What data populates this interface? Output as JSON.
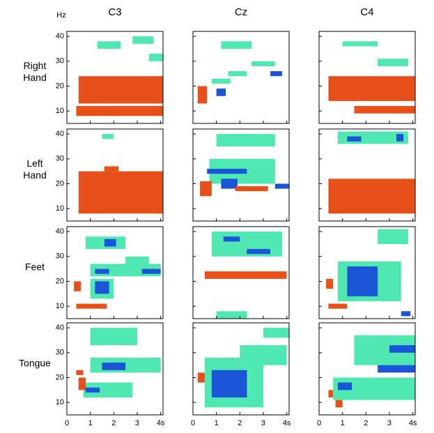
{
  "chart_data": {
    "type": "heatmap",
    "y_unit": "Hz",
    "columns": [
      "C3",
      "Cz",
      "C4"
    ],
    "rows": [
      "Right Hand",
      "Left Hand",
      "Feet",
      "Tongue"
    ],
    "xlim": [
      0,
      4.1
    ],
    "ylim": [
      5,
      42
    ],
    "xticks": [
      0,
      1,
      2,
      3,
      {
        "value": 4,
        "label": "4s"
      }
    ],
    "yticks": [
      10,
      20,
      30,
      40
    ],
    "colors": {
      "weak": "#4ee8b0",
      "erd": "#1a55d8",
      "ers": "#e8501a"
    },
    "panels": [
      [
        {
          "weak": [
            [
              1.3,
              2.3,
              35,
              38
            ],
            [
              2.8,
              3.7,
              37,
              40
            ],
            [
              3.5,
              4.1,
              30,
              33
            ]
          ],
          "erd": [],
          "ers": [
            [
              0.5,
              4.1,
              13,
              24
            ],
            [
              0.4,
              4.1,
              8,
              12
            ]
          ]
        },
        {
          "weak": [
            [
              1.2,
              2.5,
              35,
              38
            ],
            [
              2.5,
              3.5,
              28,
              30
            ],
            [
              1.5,
              2.3,
              24,
              26
            ],
            [
              0.8,
              1.6,
              21,
              23
            ]
          ],
          "erd": [
            [
              3.3,
              3.8,
              24,
              26
            ],
            [
              1.0,
              1.4,
              16,
              19
            ]
          ],
          "ers": [
            [
              0.2,
              0.6,
              13,
              20
            ]
          ]
        },
        {
          "weak": [
            [
              1.0,
              2.5,
              36,
              38
            ],
            [
              2.5,
              3.8,
              28,
              31
            ]
          ],
          "erd": [],
          "ers": [
            [
              0.4,
              4.1,
              14,
              24
            ],
            [
              1.5,
              4.1,
              9,
              12
            ]
          ]
        }
      ],
      [
        {
          "weak": [
            [
              1.5,
              2.0,
              38,
              40
            ]
          ],
          "erd": [],
          "ers": [
            [
              0.5,
              4.1,
              8,
              25
            ],
            [
              1.6,
              2.2,
              25,
              27
            ]
          ]
        },
        {
          "weak": [
            [
              0.7,
              3.5,
              20,
              30
            ],
            [
              1.0,
              3.5,
              35,
              40
            ]
          ],
          "erd": [
            [
              0.6,
              2.3,
              24,
              26
            ],
            [
              1.2,
              1.9,
              18,
              22
            ],
            [
              3.5,
              4.1,
              18,
              20
            ]
          ],
          "ers": [
            [
              0.3,
              0.8,
              15,
              21
            ],
            [
              1.8,
              3.2,
              17,
              19
            ]
          ]
        },
        {
          "weak": [
            [
              0.8,
              3.8,
              36,
              41
            ]
          ],
          "erd": [
            [
              1.2,
              1.8,
              37,
              39
            ],
            [
              3.3,
              3.6,
              37,
              40
            ]
          ],
          "ers": [
            [
              0.4,
              4.1,
              8,
              22
            ]
          ]
        }
      ],
      [
        {
          "weak": [
            [
              0.8,
              2.5,
              33,
              38
            ],
            [
              1.0,
              4.0,
              22,
              27
            ],
            [
              1.0,
              2.0,
              13,
              21
            ],
            [
              2.5,
              3.5,
              25,
              30
            ]
          ],
          "erd": [
            [
              1.6,
              2.1,
              34,
              37
            ],
            [
              1.2,
              1.8,
              23,
              25
            ],
            [
              1.2,
              1.8,
              15,
              20
            ],
            [
              3.2,
              4.0,
              23,
              25
            ]
          ],
          "ers": [
            [
              0.4,
              1.7,
              9,
              11
            ],
            [
              0.3,
              0.6,
              16,
              20
            ]
          ]
        },
        {
          "weak": [
            [
              0.8,
              3.8,
              30,
              40
            ],
            [
              1.0,
              2.3,
              5,
              8
            ]
          ],
          "erd": [
            [
              1.3,
              2.0,
              36,
              38
            ],
            [
              2.3,
              3.3,
              31,
              33
            ]
          ],
          "ers": [
            [
              0.5,
              4.0,
              21,
              24
            ]
          ]
        },
        {
          "weak": [
            [
              0.8,
              3.5,
              12,
              28
            ],
            [
              2.5,
              3.8,
              35,
              41
            ]
          ],
          "erd": [
            [
              1.2,
              2.5,
              14,
              26
            ],
            [
              3.5,
              3.9,
              6,
              8
            ]
          ],
          "ers": [
            [
              0.4,
              1.2,
              9,
              11
            ],
            [
              0.3,
              0.6,
              17,
              21
            ]
          ]
        }
      ],
      [
        {
          "weak": [
            [
              1.0,
              4.0,
              22,
              28
            ],
            [
              0.7,
              2.8,
              12,
              18
            ],
            [
              1.0,
              3.0,
              33,
              40
            ]
          ],
          "erd": [
            [
              1.5,
              2.5,
              23,
              26
            ],
            [
              0.8,
              1.4,
              14,
              16
            ]
          ],
          "ers": [
            [
              0.5,
              0.8,
              15,
              20
            ],
            [
              0.4,
              0.7,
              21,
              23
            ]
          ]
        },
        {
          "weak": [
            [
              0.5,
              3.0,
              8,
              28
            ],
            [
              2.0,
              4.0,
              25,
              33
            ],
            [
              3.0,
              4.1,
              36,
              40
            ]
          ],
          "erd": [
            [
              0.8,
              2.3,
              12,
              23
            ]
          ],
          "ers": [
            [
              0.2,
              0.5,
              18,
              22
            ]
          ]
        },
        {
          "weak": [
            [
              0.6,
              4.1,
              11,
              20
            ],
            [
              1.5,
              4.1,
              25,
              37
            ]
          ],
          "erd": [
            [
              0.8,
              1.4,
              15,
              18
            ],
            [
              2.5,
              4.1,
              22,
              25
            ],
            [
              3.0,
              4.1,
              30,
              33
            ]
          ],
          "ers": [
            [
              0.7,
              1.0,
              8,
              11
            ],
            [
              0.4,
              0.6,
              12,
              15
            ]
          ]
        }
      ]
    ]
  }
}
